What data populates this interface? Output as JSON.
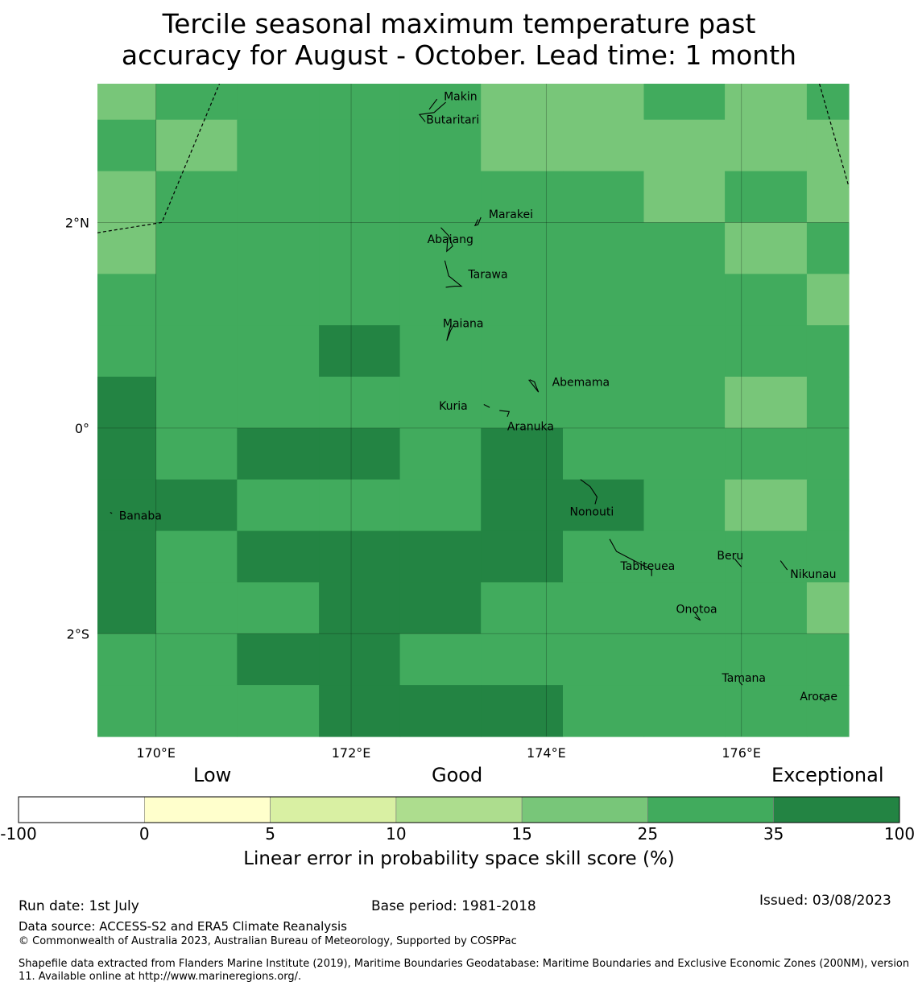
{
  "title_line1": "Tercile seasonal maximum temperature past",
  "title_line2": "accuracy for August - October. Lead time: 1 month",
  "map": {
    "lon_range": [
      169.4,
      177.1
    ],
    "lat_range": [
      -3.0,
      3.35
    ],
    "colors": {
      "c1": "#78c679",
      "c2": "#41ab5d",
      "c3": "#238443"
    },
    "grid_cols": [
      169.4,
      170.0,
      170.83,
      171.67,
      172.5,
      173.33,
      174.17,
      175.0,
      175.83,
      176.67,
      177.1
    ],
    "grid_rows": [
      3.35,
      3.0,
      2.5,
      2.0,
      1.5,
      1.0,
      0.5,
      0.0,
      -0.5,
      -1.0,
      -1.5,
      -2.0,
      -2.5,
      -3.0
    ],
    "cells": [
      [
        "c1",
        "c2",
        "c2",
        "c2",
        "c2",
        "c1",
        "c1",
        "c2",
        "c1",
        "c2"
      ],
      [
        "c2",
        "c1",
        "c2",
        "c2",
        "c2",
        "c1",
        "c1",
        "c1",
        "c1",
        "c1"
      ],
      [
        "c1",
        "c2",
        "c2",
        "c2",
        "c2",
        "c2",
        "c2",
        "c1",
        "c2",
        "c1"
      ],
      [
        "c1",
        "c2",
        "c2",
        "c2",
        "c2",
        "c2",
        "c2",
        "c2",
        "c1",
        "c2"
      ],
      [
        "c2",
        "c2",
        "c2",
        "c2",
        "c2",
        "c2",
        "c2",
        "c2",
        "c2",
        "c1"
      ],
      [
        "c2",
        "c2",
        "c2",
        "c3",
        "c2",
        "c2",
        "c2",
        "c2",
        "c2",
        "c2"
      ],
      [
        "c3",
        "c2",
        "c2",
        "c2",
        "c2",
        "c2",
        "c2",
        "c2",
        "c1",
        "c2"
      ],
      [
        "c3",
        "c2",
        "c3",
        "c3",
        "c2",
        "c3",
        "c2",
        "c2",
        "c2",
        "c2"
      ],
      [
        "c3",
        "c3",
        "c2",
        "c2",
        "c2",
        "c3",
        "c3",
        "c2",
        "c1",
        "c2"
      ],
      [
        "c3",
        "c2",
        "c3",
        "c3",
        "c3",
        "c3",
        "c2",
        "c2",
        "c2",
        "c2"
      ],
      [
        "c3",
        "c2",
        "c2",
        "c3",
        "c3",
        "c2",
        "c2",
        "c2",
        "c2",
        "c1"
      ],
      [
        "c2",
        "c2",
        "c3",
        "c3",
        "c2",
        "c2",
        "c2",
        "c2",
        "c2",
        "c2"
      ],
      [
        "c2",
        "c2",
        "c2",
        "c3",
        "c3",
        "c3",
        "c2",
        "c2",
        "c2",
        "c2"
      ]
    ],
    "lon_ticks": [
      {
        "value": 170,
        "label": "170°E"
      },
      {
        "value": 172,
        "label": "172°E"
      },
      {
        "value": 174,
        "label": "174°E"
      },
      {
        "value": 176,
        "label": "176°E"
      }
    ],
    "lat_ticks": [
      {
        "value": 2,
        "label": "2°N"
      },
      {
        "value": 0,
        "label": "0°"
      },
      {
        "value": -2,
        "label": "2°S"
      }
    ],
    "boundary_west": [
      [
        169.4,
        1.9
      ],
      [
        170.06,
        2.0
      ],
      [
        170.65,
        3.35
      ]
    ],
    "boundary_east": [
      [
        176.8,
        3.35
      ],
      [
        177.1,
        2.35
      ],
      [
        177.4,
        2.0
      ],
      [
        177.7,
        1.97
      ]
    ],
    "islands": [
      {
        "name": "Makin",
        "lon": 172.95,
        "lat": 3.23,
        "shape": [
          [
            172.88,
            3.2
          ],
          [
            172.8,
            3.1
          ]
        ]
      },
      {
        "name": "Butaritari",
        "lon": 172.77,
        "lat": 3.0,
        "shape": [
          [
            172.97,
            3.17
          ],
          [
            172.85,
            3.07
          ],
          [
            172.7,
            3.05
          ],
          [
            172.76,
            2.98
          ]
        ]
      },
      {
        "name": "Marakei",
        "lon": 173.41,
        "lat": 2.08,
        "shape": [
          [
            173.33,
            2.05
          ],
          [
            173.3,
            1.98
          ],
          [
            173.27,
            1.97
          ],
          [
            173.3,
            2.03
          ]
        ]
      },
      {
        "name": "Abaiang",
        "lon": 172.78,
        "lat": 1.84,
        "shape": [
          [
            172.92,
            1.95
          ],
          [
            173.0,
            1.87
          ],
          [
            173.04,
            1.77
          ],
          [
            172.98,
            1.72
          ],
          [
            172.99,
            1.85
          ]
        ]
      },
      {
        "name": "Tarawa",
        "lon": 173.2,
        "lat": 1.5,
        "shape": [
          [
            172.96,
            1.63
          ],
          [
            173.0,
            1.48
          ],
          [
            173.13,
            1.38
          ],
          [
            173.06,
            1.38
          ],
          [
            172.97,
            1.37
          ]
        ]
      },
      {
        "name": "Maiana",
        "lon": 172.94,
        "lat": 1.02,
        "shape": [
          [
            173.02,
            1.0
          ],
          [
            172.98,
            0.85
          ],
          [
            173.02,
            0.95
          ],
          [
            173.05,
            1.0
          ]
        ]
      },
      {
        "name": "Abemama",
        "lon": 174.06,
        "lat": 0.45,
        "shape": [
          [
            173.82,
            0.47
          ],
          [
            173.92,
            0.35
          ],
          [
            173.89,
            0.42
          ],
          [
            173.88,
            0.45
          ],
          [
            173.83,
            0.47
          ]
        ]
      },
      {
        "name": "Kuria",
        "lon": 172.9,
        "lat": 0.22,
        "shape": [
          [
            173.36,
            0.23
          ],
          [
            173.42,
            0.2
          ]
        ]
      },
      {
        "name": "Aranuka",
        "lon": 173.6,
        "lat": 0.02,
        "shape": [
          [
            173.52,
            0.17
          ],
          [
            173.62,
            0.16
          ],
          [
            173.6,
            0.11
          ]
        ]
      },
      {
        "name": "Nonouti",
        "lon": 174.24,
        "lat": -0.81,
        "shape": [
          [
            174.35,
            -0.5
          ],
          [
            174.45,
            -0.57
          ],
          [
            174.52,
            -0.67
          ],
          [
            174.5,
            -0.74
          ]
        ]
      },
      {
        "name": "Banaba",
        "lon": 169.62,
        "lat": -0.85,
        "shape": [
          [
            169.53,
            -0.82
          ],
          [
            169.55,
            -0.83
          ]
        ]
      },
      {
        "name": "Tabiteuea",
        "lon": 174.76,
        "lat": -1.34,
        "shape": [
          [
            174.65,
            -1.08
          ],
          [
            174.72,
            -1.2
          ],
          [
            174.92,
            -1.3
          ],
          [
            175.08,
            -1.38
          ],
          [
            175.08,
            -1.44
          ]
        ]
      },
      {
        "name": "Beru",
        "lon": 175.75,
        "lat": -1.24,
        "shape": [
          [
            175.93,
            -1.27
          ],
          [
            176.0,
            -1.35
          ]
        ]
      },
      {
        "name": "Nikunau",
        "lon": 176.5,
        "lat": -1.42,
        "shape": [
          [
            176.4,
            -1.29
          ],
          [
            176.47,
            -1.38
          ]
        ]
      },
      {
        "name": "Onotoa",
        "lon": 175.33,
        "lat": -1.76,
        "shape": [
          [
            175.52,
            -1.79
          ],
          [
            175.58,
            -1.87
          ],
          [
            175.52,
            -1.84
          ]
        ]
      },
      {
        "name": "Tamana",
        "lon": 175.8,
        "lat": -2.43,
        "shape": [
          [
            175.98,
            -2.47
          ],
          [
            176.01,
            -2.5
          ]
        ]
      },
      {
        "name": "Arorae",
        "lon": 176.6,
        "lat": -2.61,
        "shape": [
          [
            176.8,
            -2.61
          ],
          [
            176.86,
            -2.66
          ]
        ]
      }
    ]
  },
  "colorbar": {
    "categories": [
      "Low",
      "Good",
      "Exceptional"
    ],
    "colors": [
      "#ffffff",
      "#ffffcc",
      "#d9f0a3",
      "#addd8e",
      "#78c679",
      "#41ab5d",
      "#238443"
    ],
    "ticks": [
      "-100",
      "0",
      "5",
      "10",
      "15",
      "25",
      "35",
      "100"
    ],
    "label": "Linear error in probability space skill score (%)"
  },
  "footer": {
    "run_date": "Run date: 1st July",
    "base_period": "Base period: 1981-2018",
    "issued": "Issued: 03/08/2023",
    "data_source": "Data source: ACCESS-S2 and ERA5 Climate Reanalysis",
    "copyright": "© Commonwealth of Australia 2023, Australian Bureau of Meteorology, Supported by COSPPac",
    "shapefile": "Shapefile data extracted from Flanders Marine Institute (2019), Maritime Boundaries Geodatabase: Maritime Boundaries and Exclusive Economic Zones (200NM), version 11. Available online at http://www.marineregions.org/."
  }
}
